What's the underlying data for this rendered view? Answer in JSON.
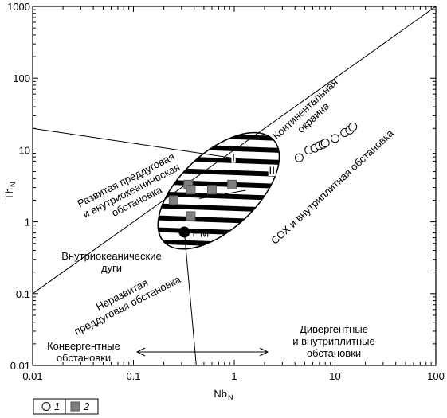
{
  "chart_data": {
    "type": "scatter",
    "xscale": "log",
    "yscale": "log",
    "xlim": [
      0.01,
      100
    ],
    "ylim": [
      0.01,
      1000
    ],
    "xlabel": "Nb",
    "xlabel_sub": "N",
    "ylabel": "Th",
    "ylabel_sub": "N",
    "x_ticks": [
      "0.01",
      "0.1",
      "1",
      "10",
      "100"
    ],
    "y_ticks": [
      "0.01",
      "0.1",
      "1",
      "10",
      "100",
      "1000"
    ],
    "series": [
      {
        "name": "1",
        "marker": "open-circle",
        "points": [
          [
            4.4,
            7.8
          ],
          [
            5.5,
            10.0
          ],
          [
            6.3,
            10.6
          ],
          [
            7.0,
            11.5
          ],
          [
            7.6,
            12.0
          ],
          [
            8.0,
            12.5
          ],
          [
            10.0,
            14.5
          ],
          [
            12.5,
            17.5
          ],
          [
            14.0,
            19.0
          ],
          [
            15.0,
            21.0
          ]
        ]
      },
      {
        "name": "2",
        "marker": "filled-square",
        "points": [
          [
            0.25,
            2.0
          ],
          [
            0.35,
            3.3
          ],
          [
            0.37,
            2.8
          ],
          [
            0.37,
            1.2
          ],
          [
            0.6,
            2.8
          ],
          [
            0.95,
            3.3
          ]
        ]
      }
    ],
    "reference_point": {
      "label": "PM",
      "x": 0.32,
      "y": 0.72
    },
    "lines": [
      {
        "from": [
          0.01,
          0.1
        ],
        "to": [
          100,
          1000
        ]
      },
      {
        "from": [
          0.01,
          20
        ],
        "to": [
          2.2,
          6.5
        ]
      },
      {
        "from": [
          0.32,
          0.72
        ],
        "to": [
          0.42,
          0.01
        ]
      }
    ],
    "zone_labels": [
      "I",
      "II"
    ],
    "region_labels": {
      "continental_margin": [
        "Континентальная",
        "окраина"
      ],
      "developed_forearc": [
        "Развитая преддуговая",
        "и внутриокеаническая",
        "обстановка"
      ],
      "intraoceanic_arcs": [
        "Внутриокеанические",
        "дуги"
      ],
      "undeveloped_forearc": [
        "Неразвитая",
        "преддуговая обстановка"
      ],
      "mor": "СОХ и внутриплитная обстановка",
      "convergent": [
        "Конвергентные",
        "обстановки"
      ],
      "divergent": [
        "Дивергентные",
        "и внутриплитные",
        "обстановки"
      ]
    },
    "legend": {
      "items": [
        "1",
        "2"
      ],
      "position": "bottom-left"
    }
  }
}
